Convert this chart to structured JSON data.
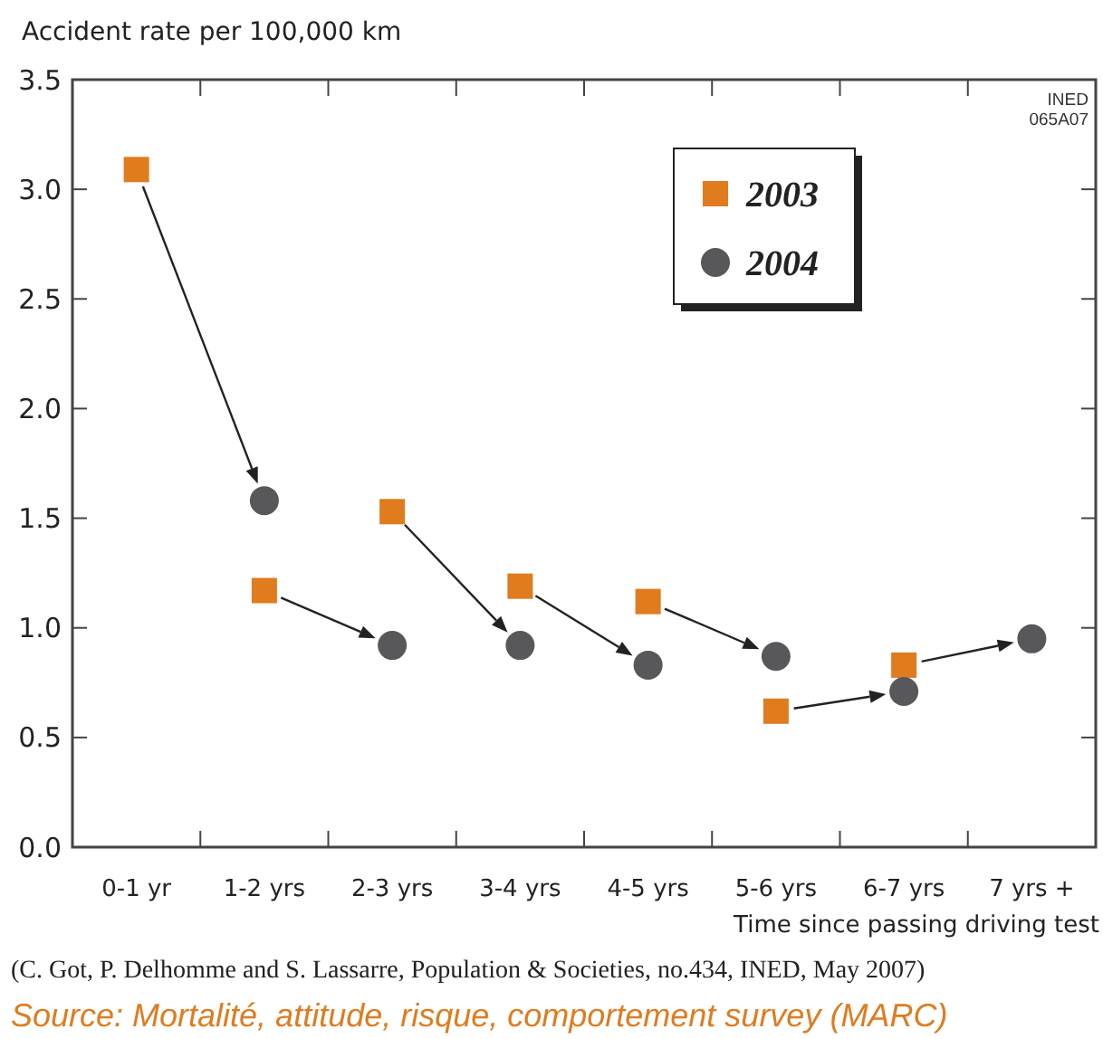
{
  "chart_data": {
    "type": "scatter",
    "ylabel": "Accident rate per 100,000 km",
    "xlabel": "Time since passing driving test",
    "categories": [
      "0-1 yr",
      "1-2 yrs",
      "2-3 yrs",
      "3-4 yrs",
      "4-5 yrs",
      "5-6 yrs",
      "6-7 yrs",
      "7 yrs +"
    ],
    "series": [
      {
        "name": "2003",
        "color": "#e07b1e",
        "marker": "square",
        "values": [
          3.09,
          1.17,
          1.53,
          1.19,
          1.12,
          0.62,
          0.83,
          null
        ]
      },
      {
        "name": "2004",
        "color": "#58585a",
        "marker": "circle",
        "values": [
          null,
          1.58,
          0.92,
          0.92,
          0.83,
          0.87,
          0.71,
          0.95
        ]
      }
    ],
    "ylim": [
      0,
      3.5
    ],
    "yticks": [
      {
        "value": 0,
        "label": "0.0"
      },
      0.5,
      {
        "value": 1,
        "label": "1.0"
      },
      1.5,
      {
        "value": 2,
        "label": "2.0"
      },
      2.5,
      {
        "value": 3,
        "label": "3.0"
      },
      3.5
    ],
    "grid": false,
    "legend": "top right",
    "annotations": [
      "INED",
      "065A07",
      "(C. Got, P. Delhomme and S. Lassarre, Population & Societies, no.434, INED, May 2007)",
      "Source: Mortalité, attitude, risque, comportement survey (MARC)"
    ]
  }
}
